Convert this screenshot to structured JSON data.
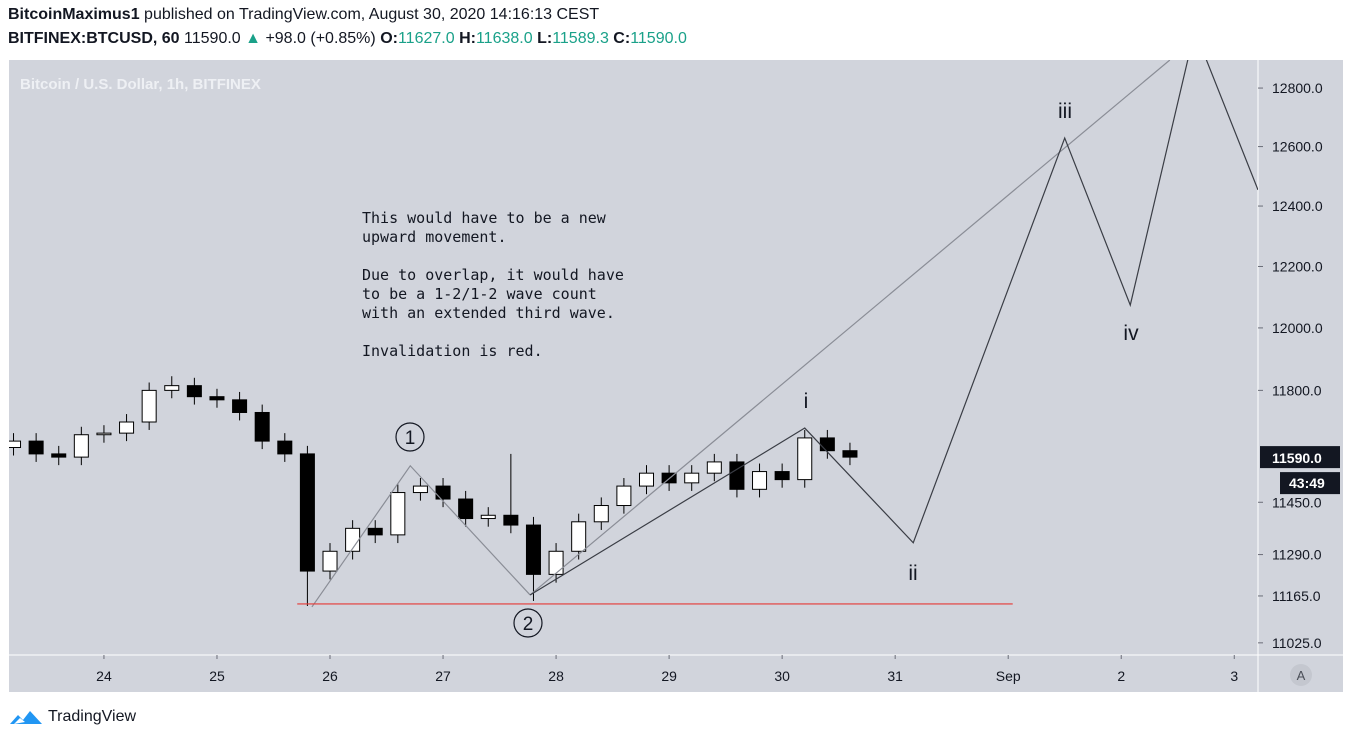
{
  "header": {
    "author": "BitcoinMaximus1",
    "published": "published on TradingView.com, August 30, 2020 14:16:13 CEST",
    "symbol": "BITFINEX:BTCUSD, 60",
    "last": "11590.0",
    "arrow": "▲",
    "change": "+98.0 (+0.85%)",
    "open_label": "O:",
    "open": "11627.0",
    "high_label": "H:",
    "high": "11638.0",
    "low_label": "L:",
    "low": "11589.3",
    "close_label": "C:",
    "close": "11590.0"
  },
  "chart_data": {
    "type": "candlestick",
    "title": "Bitcoin / U.S. Dollar, 1h, BITFINEX",
    "x": [
      23.2,
      23.4,
      23.6,
      23.8,
      24.0,
      24.2,
      24.4,
      24.6,
      24.8,
      25.0,
      25.2,
      25.4,
      25.6,
      25.8,
      26.0,
      26.2,
      26.4,
      26.6,
      26.8,
      27.0,
      27.2,
      27.4,
      27.6,
      27.8,
      28.0,
      28.2,
      28.4,
      28.6,
      28.8,
      29.0,
      29.2,
      29.4,
      29.6,
      29.8,
      30.0,
      30.2,
      30.4,
      30.6
    ],
    "open": [
      11620,
      11640,
      11600,
      11590,
      11660,
      11665,
      11700,
      11800,
      11815,
      11780,
      11770,
      11730,
      11640,
      11600,
      11240,
      11300,
      11370,
      11350,
      11480,
      11500,
      11460,
      11400,
      11410,
      11380,
      11230,
      11300,
      11390,
      11440,
      11500,
      11540,
      11510,
      11540,
      11575,
      11490,
      11545,
      11520,
      11650,
      11610
    ],
    "high": [
      11665,
      11665,
      11625,
      11685,
      11690,
      11725,
      11825,
      11845,
      11840,
      11805,
      11795,
      11755,
      11665,
      11625,
      11325,
      11395,
      11395,
      11505,
      11525,
      11525,
      11485,
      11435,
      11600,
      11405,
      11325,
      11415,
      11465,
      11525,
      11565,
      11565,
      11565,
      11600,
      11600,
      11570,
      11570,
      11675,
      11675,
      11635
    ],
    "low": [
      11595,
      11575,
      11565,
      11565,
      11635,
      11640,
      11675,
      11775,
      11755,
      11745,
      11705,
      11615,
      11575,
      11135,
      11215,
      11275,
      11325,
      11325,
      11455,
      11435,
      11375,
      11375,
      11355,
      11150,
      11205,
      11275,
      11365,
      11415,
      11475,
      11485,
      11485,
      11515,
      11465,
      11465,
      11495,
      11495,
      11585,
      11565
    ],
    "close": [
      11640,
      11600,
      11590,
      11660,
      11665,
      11700,
      11800,
      11815,
      11780,
      11770,
      11730,
      11640,
      11600,
      11240,
      11300,
      11370,
      11350,
      11480,
      11500,
      11460,
      11400,
      11410,
      11380,
      11230,
      11300,
      11390,
      11440,
      11500,
      11540,
      11510,
      11540,
      11575,
      11490,
      11545,
      11520,
      11650,
      11610,
      11590
    ],
    "up_color": "#ffffff",
    "down_color": "#000000",
    "wick_color": "#000000",
    "log_scale": true,
    "xlim": [
      23.16,
      34.21
    ],
    "xticks": [
      24,
      25,
      26,
      27,
      28,
      29,
      30,
      31,
      {
        "value": 32,
        "label": "Sep"
      },
      {
        "value": 33,
        "label": "2"
      },
      {
        "value": 34,
        "label": "3"
      }
    ],
    "ylim": [
      10989,
      12897
    ],
    "yticks": [
      {
        "value": 12800,
        "label": "12800.0"
      },
      {
        "value": 12600,
        "label": "12600.0"
      },
      {
        "value": 12400,
        "label": "12400.0"
      },
      {
        "value": 12200,
        "label": "12200.0"
      },
      {
        "value": 12000,
        "label": "12000.0"
      },
      {
        "value": 11800,
        "label": "11800.0"
      },
      {
        "value": 11450,
        "label": "11450.0"
      },
      {
        "value": 11290,
        "label": "11290.0"
      },
      {
        "value": 11165,
        "label": "11165.0"
      },
      {
        "value": 11025,
        "label": "11025.0"
      }
    ],
    "price_tag": {
      "value": 11590,
      "label": "11590.0"
    },
    "countdown": "43:49",
    "waves": [
      {
        "color": "#8a8d96",
        "x": [
          25.84,
          26.71,
          27.77
        ],
        "y": [
          11132,
          11563,
          11168
        ]
      },
      {
        "color": "#8a8d96",
        "x": [
          27.77,
          33.43
        ],
        "y": [
          11168,
          12897
        ]
      },
      {
        "color": "#3a3d45",
        "x": [
          27.77,
          30.2,
          31.16,
          32.5,
          33.08,
          33.65,
          34.21
        ],
        "y": [
          11168,
          11681,
          11326,
          12629,
          12074,
          13000,
          12454
        ]
      },
      {
        "color": "#e53935",
        "x": [
          25.71,
          32.04
        ],
        "y": [
          11141,
          11141
        ]
      }
    ],
    "wave_labels": [
      "1",
      "2",
      "i",
      "ii",
      "iii",
      "iv"
    ],
    "notes": [
      "This would have to be a new upward movement.",
      "Due to overlap, it would have to be a 1-2/1-2 wave count with an extended third wave.",
      "Invalidation is red."
    ],
    "scale_button": "A"
  },
  "footer": {
    "brand": "TradingView"
  }
}
